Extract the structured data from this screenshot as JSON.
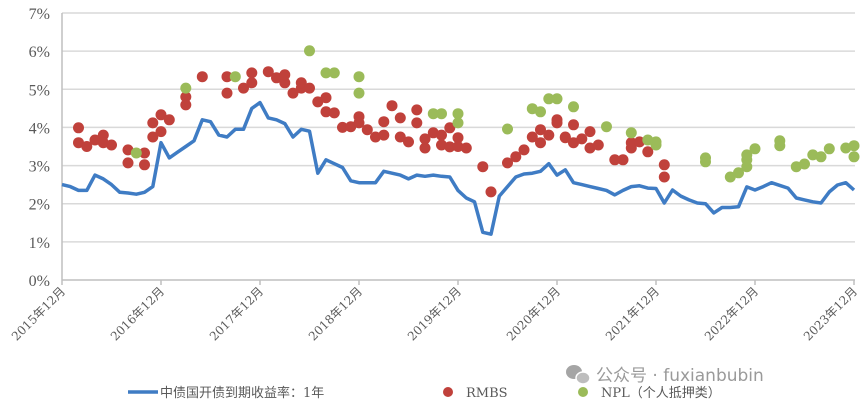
{
  "chart_data": {
    "type": "line+scatter",
    "x_type": "date",
    "ylim": [
      0,
      7
    ],
    "y_unit": "%",
    "grid": "horizontal",
    "legend_position": "bottom",
    "y_ticks": [
      "0%",
      "1%",
      "2%",
      "3%",
      "4%",
      "5%",
      "6%",
      "7%"
    ],
    "x_ticks": [
      {
        "date": "2015-12",
        "label": "2015年12月"
      },
      {
        "date": "2016-12",
        "label": "2016年12月"
      },
      {
        "date": "2017-12",
        "label": "2017年12月"
      },
      {
        "date": "2018-12",
        "label": "2018年12月"
      },
      {
        "date": "2019-12",
        "label": "2019年12月"
      },
      {
        "date": "2020-12",
        "label": "2020年12月"
      },
      {
        "date": "2021-12",
        "label": "2021年12月"
      },
      {
        "date": "2022-12",
        "label": "2022年12月"
      },
      {
        "date": "2023-12",
        "label": "2023年12月"
      }
    ],
    "series": [
      {
        "name": "中债国开债到期收益率：1年",
        "kind": "line",
        "color": "#3f7cc4",
        "points": [
          [
            "2015-12",
            2.5
          ],
          [
            "2016-01",
            2.45
          ],
          [
            "2016-02",
            2.35
          ],
          [
            "2016-03",
            2.35
          ],
          [
            "2016-04",
            2.75
          ],
          [
            "2016-05",
            2.65
          ],
          [
            "2016-06",
            2.5
          ],
          [
            "2016-07",
            2.3
          ],
          [
            "2016-08",
            2.28
          ],
          [
            "2016-09",
            2.25
          ],
          [
            "2016-10",
            2.3
          ],
          [
            "2016-11",
            2.45
          ],
          [
            "2016-12",
            3.6
          ],
          [
            "2017-01",
            3.2
          ],
          [
            "2017-02",
            3.35
          ],
          [
            "2017-03",
            3.5
          ],
          [
            "2017-04",
            3.65
          ],
          [
            "2017-05",
            4.2
          ],
          [
            "2017-06",
            4.15
          ],
          [
            "2017-07",
            3.8
          ],
          [
            "2017-08",
            3.75
          ],
          [
            "2017-09",
            3.95
          ],
          [
            "2017-10",
            3.95
          ],
          [
            "2017-11",
            4.5
          ],
          [
            "2017-12",
            4.65
          ],
          [
            "2018-01",
            4.25
          ],
          [
            "2018-02",
            4.2
          ],
          [
            "2018-03",
            4.1
          ],
          [
            "2018-04",
            3.75
          ],
          [
            "2018-05",
            3.95
          ],
          [
            "2018-06",
            3.9
          ],
          [
            "2018-07",
            2.8
          ],
          [
            "2018-08",
            3.15
          ],
          [
            "2018-09",
            3.05
          ],
          [
            "2018-10",
            2.95
          ],
          [
            "2018-11",
            2.6
          ],
          [
            "2018-12",
            2.55
          ],
          [
            "2019-01",
            2.55
          ],
          [
            "2019-02",
            2.55
          ],
          [
            "2019-03",
            2.85
          ],
          [
            "2019-04",
            2.8
          ],
          [
            "2019-05",
            2.75
          ],
          [
            "2019-06",
            2.65
          ],
          [
            "2019-07",
            2.75
          ],
          [
            "2019-08",
            2.72
          ],
          [
            "2019-09",
            2.75
          ],
          [
            "2019-10",
            2.72
          ],
          [
            "2019-11",
            2.7
          ],
          [
            "2019-12",
            2.35
          ],
          [
            "2020-01",
            2.15
          ],
          [
            "2020-02",
            2.05
          ],
          [
            "2020-03",
            1.25
          ],
          [
            "2020-04",
            1.2
          ],
          [
            "2020-05",
            2.2
          ],
          [
            "2020-06",
            2.45
          ],
          [
            "2020-07",
            2.7
          ],
          [
            "2020-08",
            2.78
          ],
          [
            "2020-09",
            2.8
          ],
          [
            "2020-10",
            2.85
          ],
          [
            "2020-11",
            3.05
          ],
          [
            "2020-12",
            2.75
          ],
          [
            "2021-01",
            2.89
          ],
          [
            "2021-02",
            2.55
          ],
          [
            "2021-03",
            2.5
          ],
          [
            "2021-04",
            2.45
          ],
          [
            "2021-05",
            2.4
          ],
          [
            "2021-06",
            2.35
          ],
          [
            "2021-07",
            2.23
          ],
          [
            "2021-08",
            2.35
          ],
          [
            "2021-09",
            2.45
          ],
          [
            "2021-10",
            2.47
          ],
          [
            "2021-11",
            2.41
          ],
          [
            "2021-12",
            2.4
          ],
          [
            "2022-01",
            2.02
          ],
          [
            "2022-02",
            2.36
          ],
          [
            "2022-03",
            2.2
          ],
          [
            "2022-04",
            2.1
          ],
          [
            "2022-05",
            2.02
          ],
          [
            "2022-06",
            2.0
          ],
          [
            "2022-07",
            1.76
          ],
          [
            "2022-08",
            1.9
          ],
          [
            "2022-09",
            1.9
          ],
          [
            "2022-10",
            1.92
          ],
          [
            "2022-11",
            2.44
          ],
          [
            "2022-12",
            2.36
          ],
          [
            "2023-01",
            2.45
          ],
          [
            "2023-02",
            2.55
          ],
          [
            "2023-03",
            2.48
          ],
          [
            "2023-04",
            2.41
          ],
          [
            "2023-05",
            2.15
          ],
          [
            "2023-06",
            2.1
          ],
          [
            "2023-07",
            2.05
          ],
          [
            "2023-08",
            2.02
          ],
          [
            "2023-09",
            2.31
          ],
          [
            "2023-10",
            2.49
          ],
          [
            "2023-11",
            2.55
          ],
          [
            "2023-12",
            2.36
          ]
        ]
      },
      {
        "name": "RMBS",
        "kind": "scatter",
        "color": "#c0413b",
        "points": [
          [
            "2016-02",
            3.99
          ],
          [
            "2016-02",
            3.6
          ],
          [
            "2016-03",
            3.5
          ],
          [
            "2016-04",
            3.67
          ],
          [
            "2016-05",
            3.8
          ],
          [
            "2016-05",
            3.6
          ],
          [
            "2016-06",
            3.54
          ],
          [
            "2016-08",
            3.41
          ],
          [
            "2016-08",
            3.07
          ],
          [
            "2016-10",
            3.33
          ],
          [
            "2016-10",
            3.02
          ],
          [
            "2016-11",
            3.75
          ],
          [
            "2016-12",
            4.33
          ],
          [
            "2016-11",
            4.12
          ],
          [
            "2016-12",
            3.89
          ],
          [
            "2017-01",
            4.2
          ],
          [
            "2017-03",
            4.8
          ],
          [
            "2017-03",
            4.59
          ],
          [
            "2017-05",
            5.33
          ],
          [
            "2017-08",
            4.9
          ],
          [
            "2017-08",
            5.33
          ],
          [
            "2017-10",
            5.03
          ],
          [
            "2017-11",
            5.43
          ],
          [
            "2017-11",
            5.17
          ],
          [
            "2018-01",
            5.46
          ],
          [
            "2018-02",
            5.3
          ],
          [
            "2018-03",
            5.17
          ],
          [
            "2018-04",
            4.9
          ],
          [
            "2018-05",
            5.03
          ],
          [
            "2018-03",
            5.38
          ],
          [
            "2018-05",
            5.17
          ],
          [
            "2018-06",
            5.03
          ],
          [
            "2018-07",
            4.67
          ],
          [
            "2018-08",
            4.78
          ],
          [
            "2018-08",
            4.41
          ],
          [
            "2018-09",
            4.38
          ],
          [
            "2018-10",
            4.0
          ],
          [
            "2018-11",
            4.02
          ],
          [
            "2018-12",
            4.28
          ],
          [
            "2018-12",
            4.12
          ],
          [
            "2019-01",
            3.94
          ],
          [
            "2019-02",
            3.75
          ],
          [
            "2019-03",
            4.15
          ],
          [
            "2019-03",
            3.8
          ],
          [
            "2019-04",
            4.57
          ],
          [
            "2019-05",
            4.25
          ],
          [
            "2019-05",
            3.75
          ],
          [
            "2019-06",
            3.62
          ],
          [
            "2019-07",
            4.46
          ],
          [
            "2019-07",
            4.12
          ],
          [
            "2019-08",
            3.46
          ],
          [
            "2019-08",
            3.7
          ],
          [
            "2019-09",
            3.86
          ],
          [
            "2019-10",
            3.54
          ],
          [
            "2019-10",
            3.8
          ],
          [
            "2019-11",
            3.99
          ],
          [
            "2019-11",
            3.49
          ],
          [
            "2019-12",
            3.73
          ],
          [
            "2019-12",
            3.5
          ],
          [
            "2020-01",
            3.46
          ],
          [
            "2020-03",
            2.97
          ],
          [
            "2020-04",
            2.31
          ],
          [
            "2020-06",
            3.07
          ],
          [
            "2020-07",
            3.23
          ],
          [
            "2020-08",
            3.41
          ],
          [
            "2020-09",
            3.75
          ],
          [
            "2020-10",
            3.94
          ],
          [
            "2020-10",
            3.6
          ],
          [
            "2020-11",
            3.8
          ],
          [
            "2020-12",
            4.2
          ],
          [
            "2020-12",
            4.12
          ],
          [
            "2021-01",
            3.75
          ],
          [
            "2021-01",
            3.73
          ],
          [
            "2021-02",
            4.07
          ],
          [
            "2021-02",
            3.6
          ],
          [
            "2021-03",
            3.7
          ],
          [
            "2021-04",
            3.46
          ],
          [
            "2021-04",
            3.89
          ],
          [
            "2021-05",
            3.54
          ],
          [
            "2021-07",
            3.15
          ],
          [
            "2021-08",
            3.15
          ],
          [
            "2021-09",
            3.46
          ],
          [
            "2021-09",
            3.6
          ],
          [
            "2021-10",
            3.62
          ],
          [
            "2021-11",
            3.36
          ],
          [
            "2022-01",
            3.02
          ],
          [
            "2022-01",
            2.7
          ]
        ]
      },
      {
        "name": "NPL（个人抵押类）",
        "kind": "scatter",
        "color": "#9bbb59",
        "points": [
          [
            "2016-09",
            3.33
          ],
          [
            "2017-03",
            5.03
          ],
          [
            "2017-09",
            5.33
          ],
          [
            "2018-06",
            6.01
          ],
          [
            "2018-08",
            5.43
          ],
          [
            "2018-09",
            5.43
          ],
          [
            "2018-12",
            5.33
          ],
          [
            "2018-12",
            4.9
          ],
          [
            "2019-09",
            4.36
          ],
          [
            "2019-10",
            4.36
          ],
          [
            "2019-12",
            4.36
          ],
          [
            "2019-12",
            4.12
          ],
          [
            "2020-06",
            3.96
          ],
          [
            "2020-09",
            4.49
          ],
          [
            "2020-10",
            4.41
          ],
          [
            "2020-11",
            4.75
          ],
          [
            "2020-12",
            4.75
          ],
          [
            "2021-02",
            4.54
          ],
          [
            "2021-06",
            4.02
          ],
          [
            "2021-09",
            3.86
          ],
          [
            "2021-11",
            3.67
          ],
          [
            "2021-12",
            3.54
          ],
          [
            "2021-12",
            3.62
          ],
          [
            "2022-06",
            3.2
          ],
          [
            "2022-06",
            3.1
          ],
          [
            "2022-09",
            2.7
          ],
          [
            "2022-10",
            2.81
          ],
          [
            "2022-11",
            2.97
          ],
          [
            "2022-11",
            3.15
          ],
          [
            "2022-11",
            3.28
          ],
          [
            "2022-12",
            3.44
          ],
          [
            "2023-03",
            3.65
          ],
          [
            "2023-03",
            3.52
          ],
          [
            "2023-05",
            2.97
          ],
          [
            "2023-06",
            3.04
          ],
          [
            "2023-07",
            3.28
          ],
          [
            "2023-08",
            3.23
          ],
          [
            "2023-09",
            3.44
          ],
          [
            "2023-11",
            3.46
          ],
          [
            "2023-12",
            3.52
          ],
          [
            "2023-12",
            3.23
          ]
        ]
      }
    ]
  },
  "legend": {
    "items": [
      {
        "label": "中债国开债到期收益率：1年",
        "color": "#3f7cc4"
      },
      {
        "label": "RMBS",
        "color": "#c0413b"
      },
      {
        "label": "NPL（个人抵押类）",
        "color": "#9bbb59"
      }
    ]
  },
  "watermark": {
    "text": "公众号 · fuxianbubin",
    "icon": "wechat-icon"
  }
}
